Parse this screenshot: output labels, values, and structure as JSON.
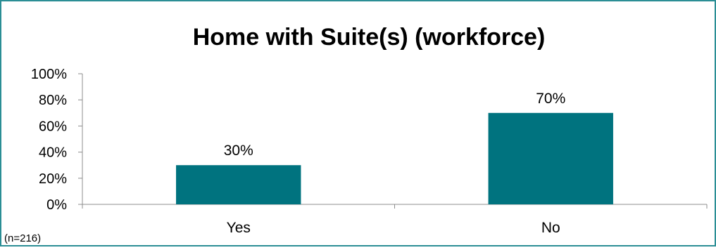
{
  "chart_data": {
    "type": "bar",
    "title": "Home with Suite(s) (workforce)",
    "categories": [
      "Yes",
      "No"
    ],
    "values": [
      30,
      70
    ],
    "data_labels": [
      "30%",
      "70%"
    ],
    "ylim": [
      0,
      100
    ],
    "y_ticks": [
      "0%",
      "20%",
      "40%",
      "60%",
      "80%",
      "100%"
    ],
    "xlabel": "",
    "ylabel": "",
    "grid": false,
    "bar_color": "#00737f",
    "note": "(n=216)"
  },
  "colors": {
    "border": "#2b8e95",
    "bar": "#00737f"
  }
}
